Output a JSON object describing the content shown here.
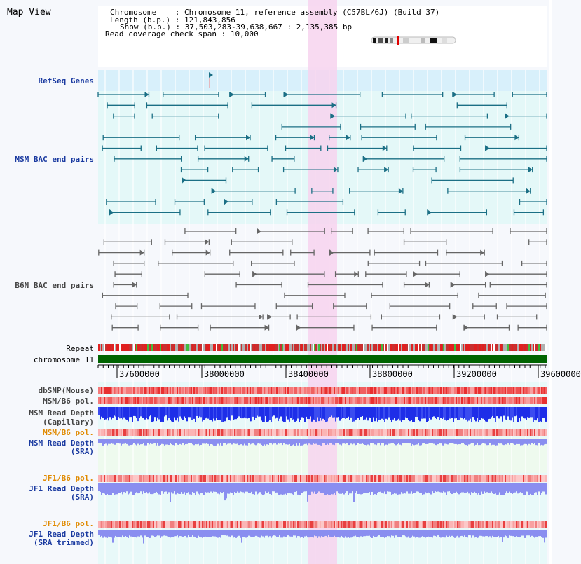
{
  "header": {
    "title": "Map View",
    "chromosome_label": "Chromosome",
    "chromosome_value": "Chromosome 11, reference assembly (C57BL/6J) (Build 37)",
    "length_label": "Length (b.p.)",
    "length_value": "121,843,856",
    "show_label": "Show (b.p.)",
    "show_value": "37,503,283-39,638,667 : 2,135,385 bp",
    "coverage_label": "Read coverage check span",
    "coverage_value": "10,000"
  },
  "tracks": {
    "refseq": "RefSeq Genes",
    "msm_bac": "MSM BAC end pairs",
    "b6n_bac": "B6N BAC end pairs",
    "repeat": "Repeat",
    "chromosome": "chromosome 11",
    "dbsnp": "dbSNP(Mouse)",
    "msm_b6_pol_1": "MSM/B6 pol.",
    "msm_depth_cap_1": "MSM Read Depth",
    "msm_depth_cap_2": "(Capillary)",
    "msm_b6_pol_2": "MSM/B6 pol.",
    "msm_depth_sra_1": "MSM Read Depth",
    "msm_depth_sra_2": "(SRA)",
    "jf1_b6_pol_1": "JF1/B6 pol.",
    "jf1_depth_sra_1": "JF1 Read Depth",
    "jf1_depth_sra_2": "(SRA)",
    "jf1_b6_pol_2": "JF1/B6 pol.",
    "jf1_depth_trim_1": "JF1 Read Depth",
    "jf1_depth_trim_2": "(SRA trimmed)"
  },
  "axis": {
    "ticks": [
      "37600000",
      "38000000",
      "38400000",
      "38800000",
      "39200000",
      "39600000"
    ]
  },
  "colors": {
    "msm_line": "#1b6f85",
    "b6n_line": "#666666",
    "highlight": "#f7d4ef",
    "chromosome_bar": "#006400",
    "depth_blue": "#1e2ee8",
    "depth_lavender": "#8a8ef0",
    "pol_red": "#f04848"
  }
}
